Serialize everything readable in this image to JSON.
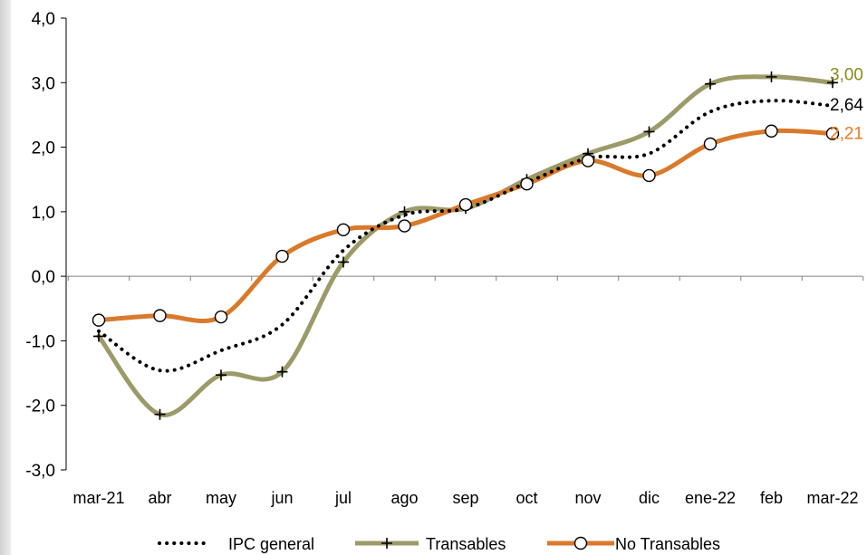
{
  "chart_data": {
    "type": "line",
    "categories": [
      "mar-21",
      "abr",
      "may",
      "jun",
      "jul",
      "ago",
      "sep",
      "oct",
      "nov",
      "dic",
      "ene-22",
      "feb",
      "mar-22"
    ],
    "ylim": [
      -3,
      4
    ],
    "yticks": [
      "4,0",
      "3,0",
      "2,0",
      "1,0",
      "0,0",
      "-1,0",
      "-2,0",
      "-3,0"
    ],
    "ytick_values": [
      4,
      3,
      2,
      1,
      0,
      -1,
      -2,
      -3
    ],
    "series": [
      {
        "name": "IPC general",
        "color": "#000000",
        "marker": "none",
        "line_style": "dotted",
        "values": [
          -0.85,
          -1.46,
          -1.15,
          -0.75,
          0.4,
          0.95,
          1.05,
          1.45,
          1.83,
          1.9,
          2.55,
          2.72,
          2.64
        ]
      },
      {
        "name": "Transables",
        "color": "#9c9a68",
        "marker": "plus",
        "line_style": "solid",
        "values": [
          -0.93,
          -2.14,
          -1.53,
          -1.48,
          0.22,
          1.0,
          1.05,
          1.5,
          1.9,
          2.24,
          2.98,
          3.09,
          3.0
        ]
      },
      {
        "name": "No Transables",
        "color": "#d97a2b",
        "marker": "circle",
        "line_style": "solid",
        "values": [
          -0.68,
          -0.61,
          -0.63,
          0.31,
          0.72,
          0.78,
          1.11,
          1.43,
          1.79,
          1.56,
          2.05,
          2.25,
          2.21
        ]
      }
    ],
    "end_labels": [
      {
        "text": "3,00",
        "color": "#8a8a1e"
      },
      {
        "text": "2,64",
        "color": "#000000"
      },
      {
        "text": "2,21",
        "color": "#ec7a1e"
      }
    ],
    "legend_position": "bottom-center",
    "grid": false
  }
}
